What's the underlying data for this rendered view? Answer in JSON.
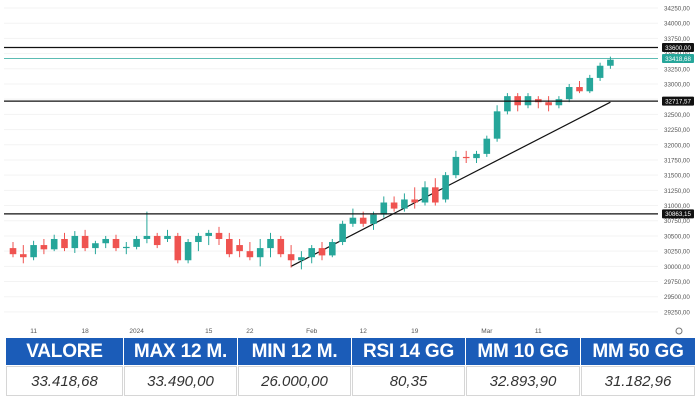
{
  "chart_data": {
    "type": "candlestick",
    "y_axis_side": "right",
    "ylim": [
      29150,
      34250
    ],
    "y_ticks": [
      "34250,00",
      "34000,00",
      "33750,00",
      "33500,00",
      "33250,00",
      "33000,00",
      "32750,00",
      "32500,00",
      "32250,00",
      "32000,00",
      "31750,00",
      "31500,00",
      "31250,00",
      "31000,00",
      "30750,00",
      "30500,00",
      "30250,00",
      "30000,00",
      "29750,00",
      "29500,00",
      "29250,00"
    ],
    "y_tick_values": [
      34250,
      34000,
      33750,
      33500,
      33250,
      33000,
      32750,
      32500,
      32250,
      32000,
      31750,
      31500,
      31250,
      31000,
      30750,
      30500,
      30250,
      30000,
      29750,
      29500,
      29250
    ],
    "x_ticks": [
      {
        "label": "11",
        "index": 2
      },
      {
        "label": "18",
        "index": 7
      },
      {
        "label": "2024",
        "index": 12
      },
      {
        "label": "15",
        "index": 19
      },
      {
        "label": "22",
        "index": 23
      },
      {
        "label": "Feb",
        "index": 29
      },
      {
        "label": "12",
        "index": 34
      },
      {
        "label": "19",
        "index": 39
      },
      {
        "label": "Mar",
        "index": 46
      },
      {
        "label": "11",
        "index": 51
      }
    ],
    "candles": [
      {
        "o": 30300,
        "h": 30400,
        "l": 30150,
        "c": 30200
      },
      {
        "o": 30200,
        "h": 30350,
        "l": 30050,
        "c": 30150
      },
      {
        "o": 30150,
        "h": 30420,
        "l": 30100,
        "c": 30350
      },
      {
        "o": 30350,
        "h": 30450,
        "l": 30200,
        "c": 30280
      },
      {
        "o": 30280,
        "h": 30520,
        "l": 30250,
        "c": 30450
      },
      {
        "o": 30450,
        "h": 30550,
        "l": 30250,
        "c": 30300
      },
      {
        "o": 30300,
        "h": 30580,
        "l": 30220,
        "c": 30500
      },
      {
        "o": 30500,
        "h": 30600,
        "l": 30250,
        "c": 30300
      },
      {
        "o": 30300,
        "h": 30420,
        "l": 30200,
        "c": 30380
      },
      {
        "o": 30380,
        "h": 30500,
        "l": 30300,
        "c": 30450
      },
      {
        "o": 30450,
        "h": 30520,
        "l": 30250,
        "c": 30300
      },
      {
        "o": 30300,
        "h": 30400,
        "l": 30200,
        "c": 30320
      },
      {
        "o": 30320,
        "h": 30500,
        "l": 30280,
        "c": 30450
      },
      {
        "o": 30450,
        "h": 30900,
        "l": 30380,
        "c": 30500
      },
      {
        "o": 30500,
        "h": 30550,
        "l": 30300,
        "c": 30350
      },
      {
        "o": 30450,
        "h": 30600,
        "l": 30400,
        "c": 30500
      },
      {
        "o": 30500,
        "h": 30550,
        "l": 30050,
        "c": 30100
      },
      {
        "o": 30100,
        "h": 30450,
        "l": 30050,
        "c": 30400
      },
      {
        "o": 30400,
        "h": 30550,
        "l": 30250,
        "c": 30500
      },
      {
        "o": 30500,
        "h": 30600,
        "l": 30350,
        "c": 30550
      },
      {
        "o": 30550,
        "h": 30650,
        "l": 30350,
        "c": 30450
      },
      {
        "o": 30450,
        "h": 30550,
        "l": 30150,
        "c": 30200
      },
      {
        "o": 30350,
        "h": 30450,
        "l": 30150,
        "c": 30250
      },
      {
        "o": 30250,
        "h": 30400,
        "l": 30100,
        "c": 30150
      },
      {
        "o": 30150,
        "h": 30450,
        "l": 30000,
        "c": 30300
      },
      {
        "o": 30300,
        "h": 30550,
        "l": 30150,
        "c": 30450
      },
      {
        "o": 30450,
        "h": 30500,
        "l": 30150,
        "c": 30200
      },
      {
        "o": 30200,
        "h": 30350,
        "l": 29980,
        "c": 30100
      },
      {
        "o": 30100,
        "h": 30250,
        "l": 29950,
        "c": 30150
      },
      {
        "o": 30150,
        "h": 30350,
        "l": 30050,
        "c": 30300
      },
      {
        "o": 30300,
        "h": 30400,
        "l": 30100,
        "c": 30180
      },
      {
        "o": 30180,
        "h": 30450,
        "l": 30150,
        "c": 30400
      },
      {
        "o": 30400,
        "h": 30750,
        "l": 30350,
        "c": 30700
      },
      {
        "o": 30700,
        "h": 30950,
        "l": 30650,
        "c": 30800
      },
      {
        "o": 30800,
        "h": 30900,
        "l": 30650,
        "c": 30700
      },
      {
        "o": 30700,
        "h": 30900,
        "l": 30600,
        "c": 30850
      },
      {
        "o": 30850,
        "h": 31150,
        "l": 30800,
        "c": 31050
      },
      {
        "o": 31050,
        "h": 31150,
        "l": 30900,
        "c": 30950
      },
      {
        "o": 30950,
        "h": 31200,
        "l": 30900,
        "c": 31100
      },
      {
        "o": 31100,
        "h": 31300,
        "l": 30950,
        "c": 31050
      },
      {
        "o": 31050,
        "h": 31400,
        "l": 31000,
        "c": 31300
      },
      {
        "o": 31300,
        "h": 31450,
        "l": 31000,
        "c": 31050
      },
      {
        "o": 31100,
        "h": 31550,
        "l": 31050,
        "c": 31500
      },
      {
        "o": 31500,
        "h": 31900,
        "l": 31450,
        "c": 31800
      },
      {
        "o": 31800,
        "h": 31900,
        "l": 31700,
        "c": 31780
      },
      {
        "o": 31780,
        "h": 31900,
        "l": 31700,
        "c": 31850
      },
      {
        "o": 31850,
        "h": 32150,
        "l": 31800,
        "c": 32100
      },
      {
        "o": 32100,
        "h": 32650,
        "l": 32050,
        "c": 32550
      },
      {
        "o": 32550,
        "h": 32850,
        "l": 32500,
        "c": 32800
      },
      {
        "o": 32800,
        "h": 32850,
        "l": 32550,
        "c": 32650
      },
      {
        "o": 32650,
        "h": 32850,
        "l": 32600,
        "c": 32800
      },
      {
        "o": 32750,
        "h": 32800,
        "l": 32600,
        "c": 32700
      },
      {
        "o": 32700,
        "h": 32800,
        "l": 32550,
        "c": 32650
      },
      {
        "o": 32650,
        "h": 32800,
        "l": 32600,
        "c": 32750
      },
      {
        "o": 32750,
        "h": 33000,
        "l": 32700,
        "c": 32950
      },
      {
        "o": 32950,
        "h": 33050,
        "l": 32850,
        "c": 32880
      },
      {
        "o": 32880,
        "h": 33150,
        "l": 32850,
        "c": 33100
      },
      {
        "o": 33100,
        "h": 33350,
        "l": 33050,
        "c": 33300
      },
      {
        "o": 33300,
        "h": 33450,
        "l": 33250,
        "c": 33400
      }
    ],
    "levels": [
      {
        "value": 33600,
        "label": "33600,00",
        "style": "dark"
      },
      {
        "value": 33418.68,
        "label": "33418,68",
        "style": "current"
      },
      {
        "value": 32717.57,
        "label": "32717,57",
        "style": "dark"
      },
      {
        "value": 30863.15,
        "label": "30863,15",
        "style": "dark"
      }
    ],
    "trendline": {
      "from": {
        "index": 27,
        "value": 30000
      },
      "to": {
        "index": 58,
        "value": 32700
      }
    },
    "colors": {
      "up": "#26a69a",
      "down": "#ef5350",
      "level": "#111111",
      "current": "#26a69a",
      "trend": "#111111"
    }
  },
  "stats": [
    {
      "label": "VALORE",
      "value": "33.418,68"
    },
    {
      "label": "MAX 12 M.",
      "value": "33.490,00"
    },
    {
      "label": "MIN 12 M.",
      "value": "26.000,00"
    },
    {
      "label": "RSI 14 GG",
      "value": "80,35"
    },
    {
      "label": "MM 10 GG",
      "value": "32.893,90"
    },
    {
      "label": "MM 50 GG",
      "value": "31.182,96"
    }
  ],
  "header_color": "#1b5cb8"
}
